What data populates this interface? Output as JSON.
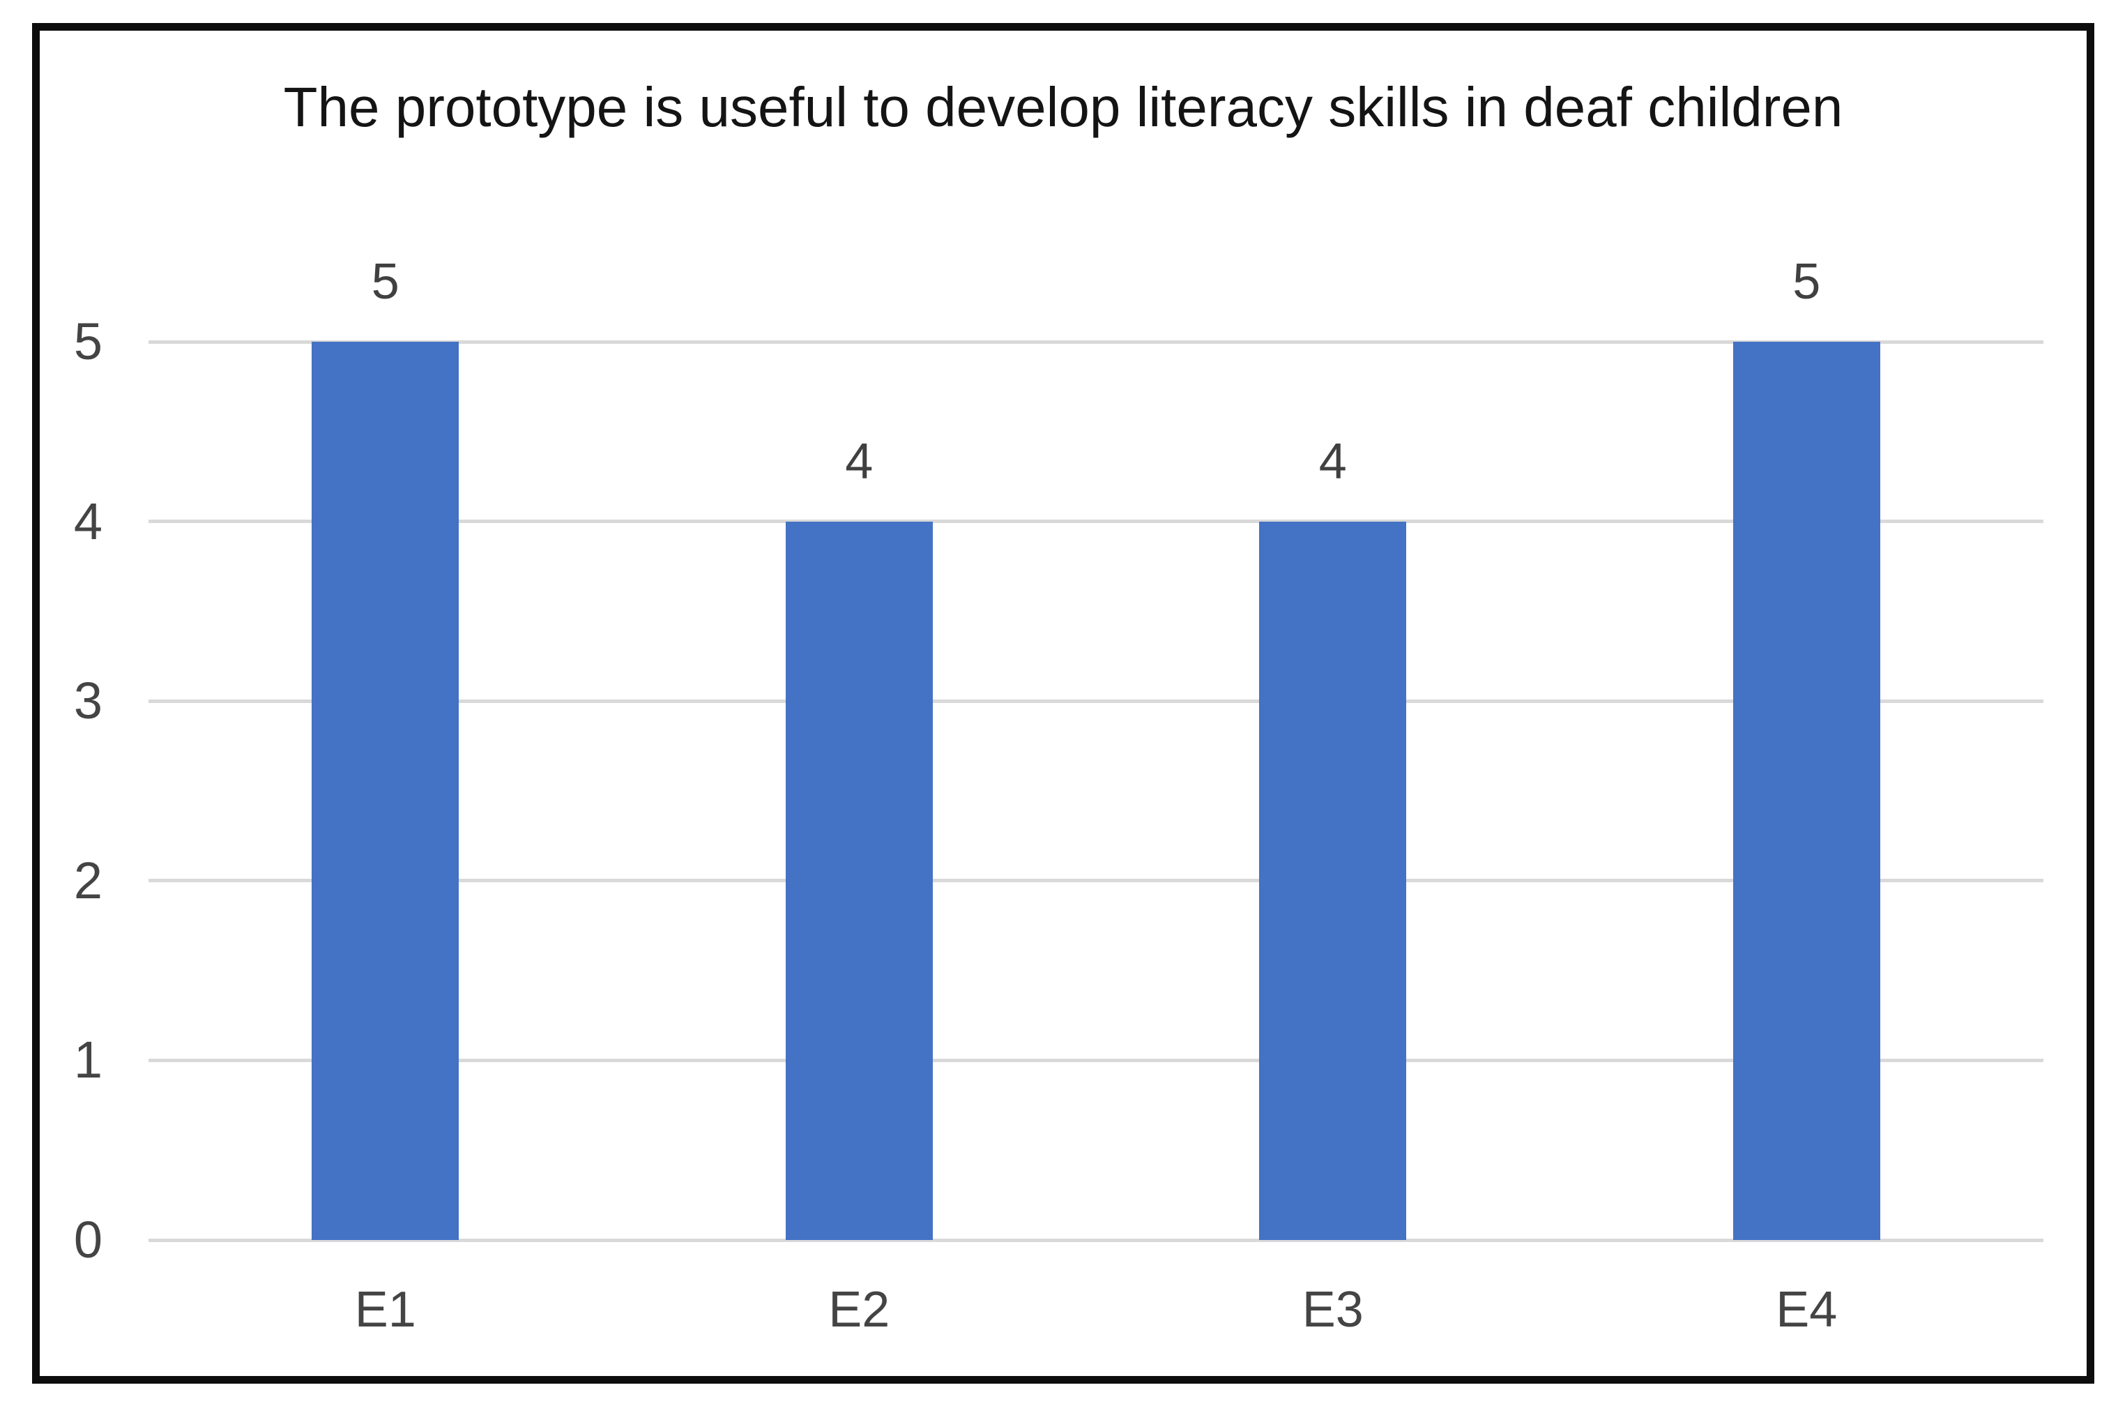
{
  "figure": {
    "border_color": "#0d0d0d",
    "background_color": "#ffffff"
  },
  "chart_data": {
    "type": "bar",
    "title": "The prototype is useful to develop literacy skills in deaf children",
    "categories": [
      "E1",
      "E2",
      "E3",
      "E4"
    ],
    "values": [
      5,
      4,
      4,
      5
    ],
    "xlabel": "",
    "ylabel": "",
    "ylim": [
      0,
      5
    ],
    "yticks": [
      0,
      1,
      2,
      3,
      4,
      5
    ],
    "grid": true,
    "legend": false,
    "show_data_labels": true,
    "bar_color": "#4472C4",
    "gridline_color": "#D9D9D9",
    "tick_label_color": "#444444",
    "data_label_color": "#404040",
    "title_color": "#141414"
  }
}
